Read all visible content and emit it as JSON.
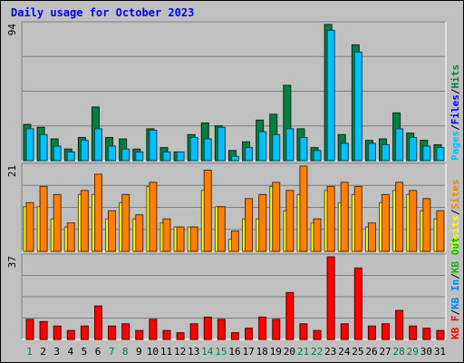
{
  "title": "Daily usage for October 2023",
  "chart_data": {
    "type": "bar",
    "title": "Daily usage for October 2023",
    "categories": [
      "1",
      "2",
      "3",
      "4",
      "5",
      "6",
      "7",
      "8",
      "9",
      "10",
      "11",
      "12",
      "13",
      "14",
      "15",
      "16",
      "17",
      "18",
      "19",
      "20",
      "21",
      "22",
      "23",
      "24",
      "25",
      "26",
      "27",
      "28",
      "29",
      "30",
      "31"
    ],
    "weekend_days": [
      "1",
      "7",
      "8",
      "14",
      "15",
      "21",
      "22",
      "28",
      "29"
    ],
    "panels": [
      {
        "max_label": "94",
        "max": 94,
        "legend": [
          {
            "text": "Pages",
            "color": "#00c0ff"
          },
          {
            "text": "/",
            "color": "#000000"
          },
          {
            "text": "Files",
            "color": "#0000ff"
          },
          {
            "text": "/",
            "color": "#000000"
          },
          {
            "text": "Hits",
            "color": "#008040"
          }
        ],
        "series": [
          {
            "name": "Hits",
            "color": "#008040",
            "values": [
              25,
              23,
              15,
              8,
              16,
              37,
              16,
              15,
              8,
              22,
              9,
              6,
              18,
              26,
              24,
              7,
              13,
              28,
              32,
              52,
              22,
              9,
              94,
              18,
              80,
              14,
              15,
              33,
              19,
              14,
              11
            ]
          },
          {
            "name": "Files",
            "color": "#00c0ff",
            "values": [
              22,
              18,
              10,
              6,
              14,
              22,
              10,
              8,
              6,
              21,
              6,
              6,
              16,
              15,
              23,
              3,
              9,
              20,
              18,
              22,
              16,
              7,
              90,
              12,
              75,
              12,
              11,
              22,
              16,
              10,
              9
            ]
          }
        ]
      },
      {
        "max_label": "21",
        "max": 21,
        "legend": [
          {
            "text": "Visits",
            "color": "#ffff00"
          },
          {
            "text": "/",
            "color": "#000000"
          },
          {
            "text": "Sites",
            "color": "#ff8000"
          }
        ],
        "series": [
          {
            "name": "Visits",
            "color": "#ffff00",
            "values": [
              11,
              11,
              8,
              6,
              14,
              14,
              8,
              12,
              8,
              16,
              7,
              6,
              6,
              15,
              11,
              3,
              8,
              8,
              16,
              10,
              14,
              7,
              15,
              12,
              14,
              6,
              12,
              15,
              14,
              10,
              8
            ]
          },
          {
            "name": "Sites",
            "color": "#ff8000",
            "values": [
              12,
              16,
              14,
              7,
              15,
              19,
              10,
              14,
              9,
              17,
              8,
              6,
              6,
              20,
              11,
              5,
              13,
              14,
              17,
              15,
              21,
              8,
              16,
              17,
              16,
              7,
              14,
              17,
              15,
              13,
              10
            ]
          }
        ]
      },
      {
        "max_label": "37",
        "max": 37,
        "legend": [
          {
            "text": "KB F",
            "color": "#ff0000"
          },
          {
            "text": "/",
            "color": "#000000"
          },
          {
            "text": "KB In",
            "color": "#0080ff"
          },
          {
            "text": "/",
            "color": "#000000"
          },
          {
            "text": "KB Out",
            "color": "#00c000"
          }
        ],
        "series": [
          {
            "name": "KB F",
            "color": "#ff0000",
            "values": [
              9,
              8,
              6,
              4,
              6,
              15,
              6,
              7,
              4,
              9,
              4,
              3,
              7,
              10,
              9,
              3,
              5,
              10,
              9,
              21,
              7,
              4,
              37,
              7,
              32,
              6,
              7,
              13,
              6,
              5,
              4
            ]
          }
        ]
      }
    ]
  }
}
